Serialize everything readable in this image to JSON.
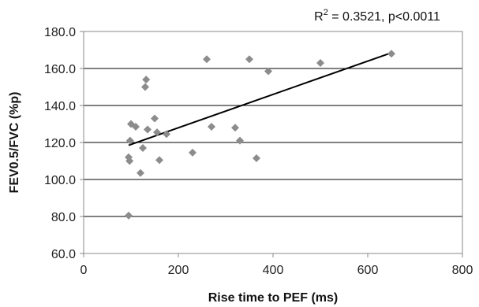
{
  "chart_data": {
    "type": "scatter",
    "title": "",
    "annotation": "R² = 0.3521, p<0.0011",
    "xlabel": "Rise time to PEF (ms)",
    "ylabel": "FEV0.5/FVC (%p)",
    "xlim": [
      0,
      800
    ],
    "ylim": [
      60,
      180
    ],
    "xticks": [
      0,
      200,
      400,
      600,
      800
    ],
    "xtick_labels": [
      "0",
      "200",
      "400",
      "600",
      "800"
    ],
    "yticks": [
      60,
      80,
      100,
      120,
      140,
      160,
      180
    ],
    "ytick_labels": [
      "60.0",
      "80.0",
      "100.0",
      "120.0",
      "140.0",
      "160.0",
      "180.0"
    ],
    "grid": "horizontal",
    "marker_color": "#8c8c8c",
    "trendline_color": "#000000",
    "points": [
      {
        "x": 95,
        "y": 80.5
      },
      {
        "x": 95,
        "y": 112
      },
      {
        "x": 97,
        "y": 110
      },
      {
        "x": 98,
        "y": 121
      },
      {
        "x": 100,
        "y": 130
      },
      {
        "x": 110,
        "y": 128.5
      },
      {
        "x": 120,
        "y": 103.5
      },
      {
        "x": 125,
        "y": 117
      },
      {
        "x": 130,
        "y": 150
      },
      {
        "x": 132,
        "y": 154
      },
      {
        "x": 135,
        "y": 127
      },
      {
        "x": 150,
        "y": 133
      },
      {
        "x": 155,
        "y": 125.5
      },
      {
        "x": 160,
        "y": 110.5
      },
      {
        "x": 175,
        "y": 124.5
      },
      {
        "x": 230,
        "y": 114.5
      },
      {
        "x": 260,
        "y": 165
      },
      {
        "x": 270,
        "y": 128.5
      },
      {
        "x": 320,
        "y": 128
      },
      {
        "x": 330,
        "y": 121
      },
      {
        "x": 350,
        "y": 165
      },
      {
        "x": 365,
        "y": 111.5
      },
      {
        "x": 390,
        "y": 158.5
      },
      {
        "x": 500,
        "y": 163
      },
      {
        "x": 650,
        "y": 168
      }
    ],
    "trendline": {
      "x": [
        95,
        650
      ],
      "y": [
        118.5,
        168.5
      ]
    }
  }
}
